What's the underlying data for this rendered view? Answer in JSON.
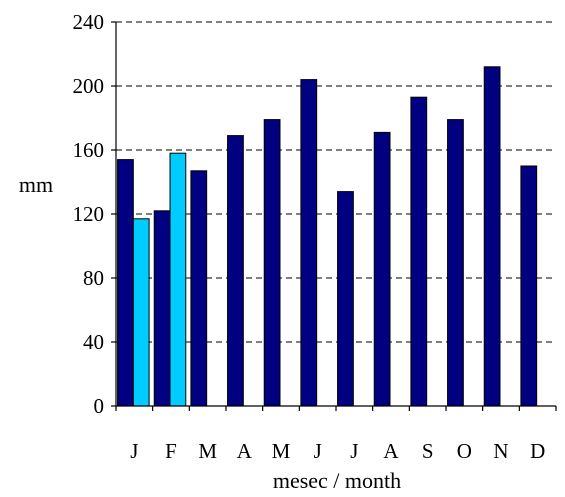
{
  "chart_data": {
    "type": "bar",
    "categories": [
      "J",
      "F",
      "M",
      "A",
      "M",
      "J",
      "J",
      "A",
      "S",
      "O",
      "N",
      "D"
    ],
    "series": [
      {
        "values": [
          154,
          122,
          147,
          169,
          179,
          204,
          134,
          171,
          193,
          179,
          212,
          150
        ],
        "color": "#000080"
      },
      {
        "values": [
          117,
          158,
          null,
          null,
          null,
          null,
          null,
          null,
          null,
          null,
          null,
          null
        ],
        "color": "#00CCFF"
      }
    ],
    "ylabel": "mm",
    "xlabel": "mesec / month",
    "ylim": [
      0,
      240
    ],
    "yticks": [
      "0",
      "40",
      "80",
      "120",
      "160",
      "200",
      "240"
    ],
    "grid": "horizontal dashed"
  }
}
